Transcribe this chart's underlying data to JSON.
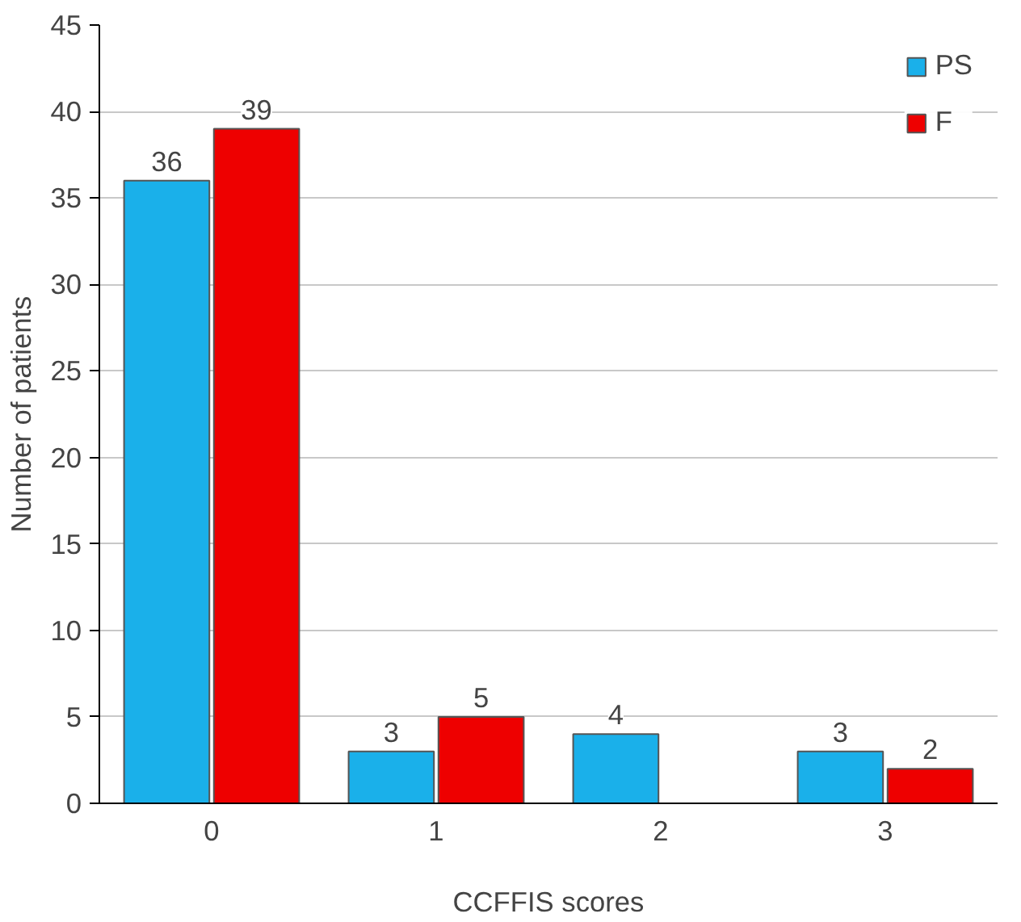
{
  "chart_data": {
    "type": "bar",
    "xlabel": "CCFFIS scores",
    "ylabel": "Number of patients",
    "categories": [
      "0",
      "1",
      "2",
      "3"
    ],
    "series": [
      {
        "name": "PS",
        "color": "#1ab0ea",
        "values": [
          36,
          3,
          4,
          3
        ],
        "value_labels": [
          "36",
          "3",
          "4",
          "3"
        ]
      },
      {
        "name": "F",
        "color": "#ee0000",
        "values": [
          39,
          5,
          null,
          2
        ],
        "value_labels": [
          "39",
          "5",
          null,
          "2"
        ]
      }
    ],
    "ylim": [
      0,
      45
    ],
    "yticks": [
      0,
      5,
      10,
      15,
      20,
      25,
      30,
      35,
      40,
      45
    ],
    "grid": "y",
    "legend": "top right"
  }
}
